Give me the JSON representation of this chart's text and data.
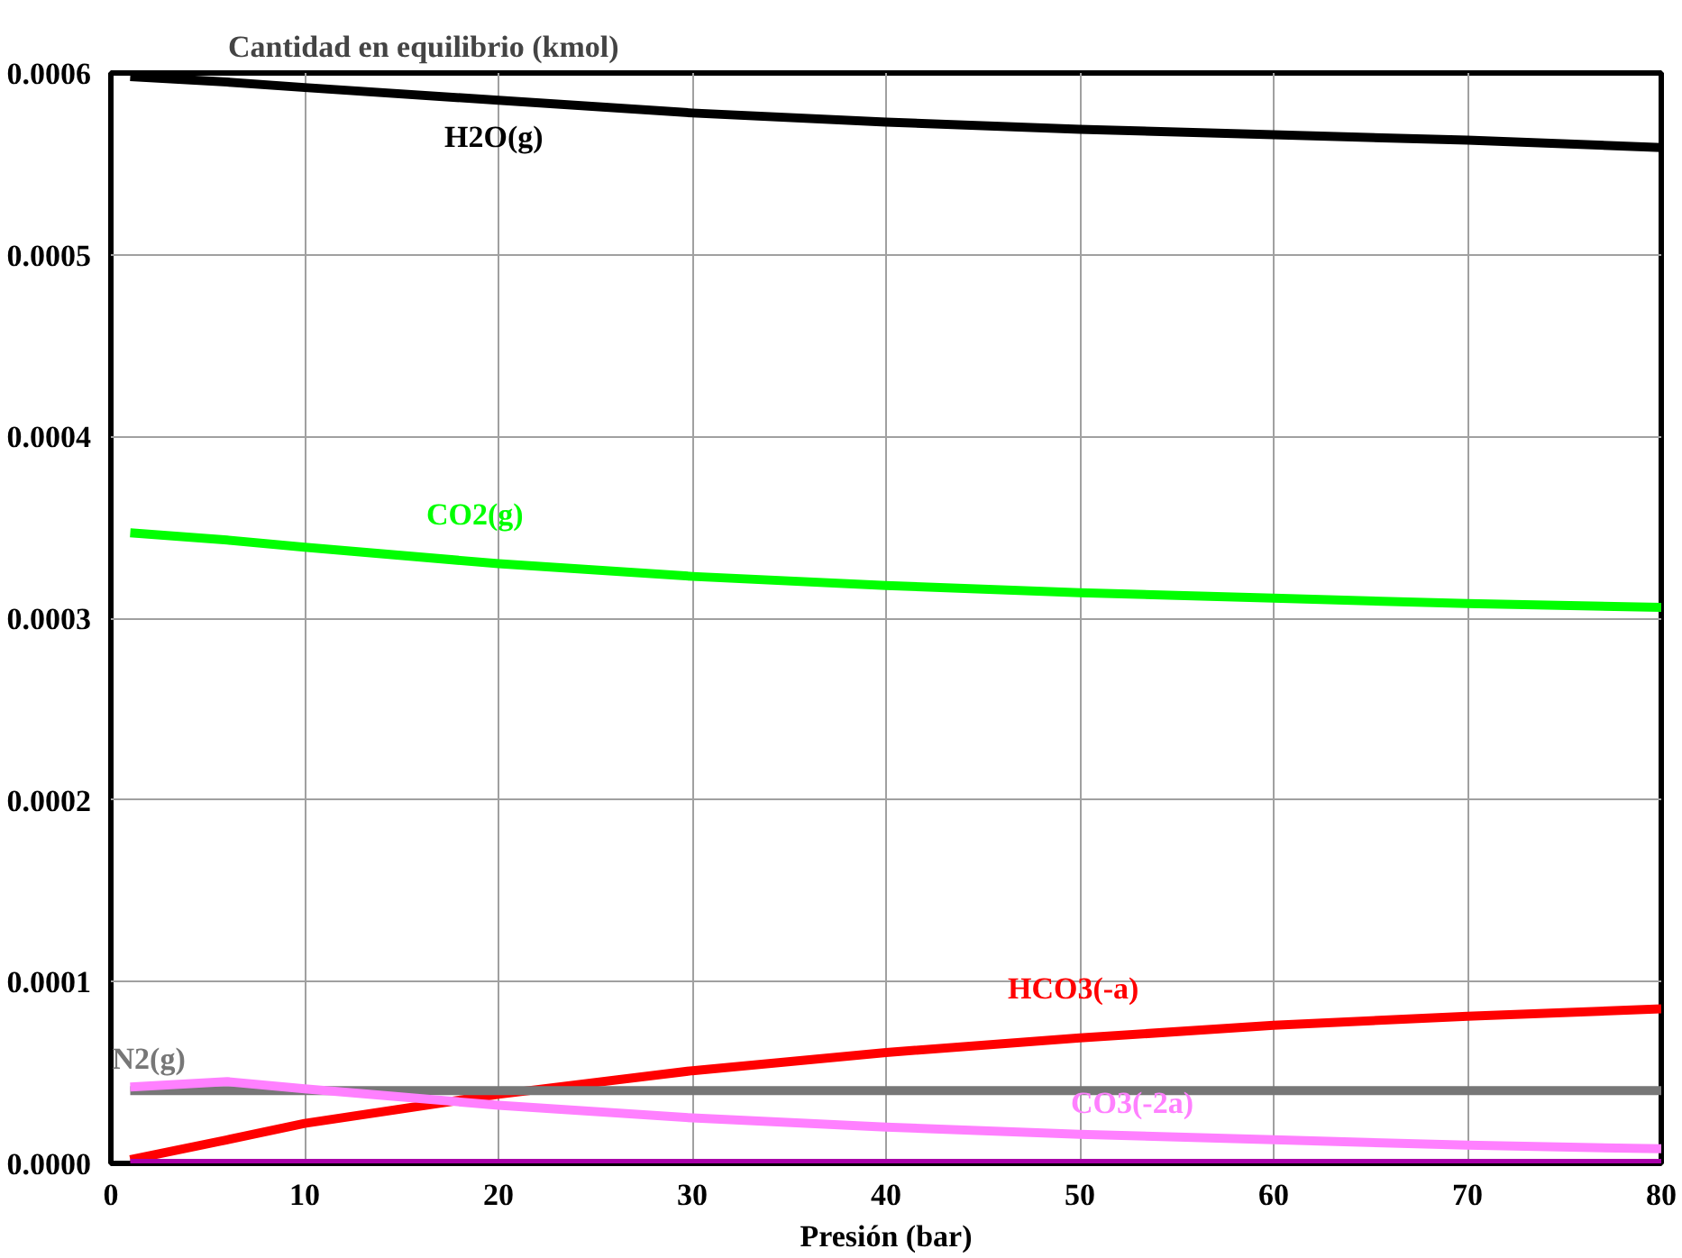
{
  "chart_data": {
    "type": "line",
    "ylabel": "Cantidad en equilibrio (kmol)",
    "xlabel": "Presión (bar)",
    "x": [
      1,
      6,
      10,
      20,
      30,
      40,
      50,
      60,
      70,
      80
    ],
    "series": [
      {
        "name": "H2O(g)",
        "color": "#000000",
        "values": [
          0.000598,
          0.000595,
          0.000592,
          0.000585,
          0.000578,
          0.000573,
          0.000569,
          0.000566,
          0.000563,
          0.000559
        ]
      },
      {
        "name": "CO2(g)",
        "color": "#00ff00",
        "values": [
          0.000347,
          0.000343,
          0.000339,
          0.00033,
          0.000323,
          0.000318,
          0.000314,
          0.000311,
          0.000308,
          0.000306
        ]
      },
      {
        "name": "HCO3(-a)",
        "color": "#ff0000",
        "values": [
          2e-06,
          1.3e-05,
          2.2e-05,
          3.8e-05,
          5.1e-05,
          6.1e-05,
          6.9e-05,
          7.6e-05,
          8.1e-05,
          8.5e-05
        ]
      },
      {
        "name": "N2(g)",
        "color": "#777777",
        "values": [
          4e-05,
          4e-05,
          4e-05,
          4e-05,
          4e-05,
          4e-05,
          4e-05,
          4e-05,
          4e-05,
          4e-05
        ]
      },
      {
        "name": "CO3(-2a)",
        "color": "#ff80ff",
        "values": [
          4.2e-05,
          4.5e-05,
          4.1e-05,
          3.2e-05,
          2.5e-05,
          2e-05,
          1.6e-05,
          1.3e-05,
          1e-05,
          8e-06
        ]
      },
      {
        "color": "#aa00aa",
        "values": [
          0,
          0,
          0,
          0,
          0,
          0,
          0,
          0,
          0,
          0
        ]
      }
    ],
    "xlim": [
      0,
      80
    ],
    "xticks": [
      0,
      10,
      20,
      30,
      40,
      50,
      60,
      70,
      80
    ],
    "ylim": [
      0,
      0.0006
    ],
    "yticks": [
      {
        "value": 0,
        "label": "0.0000"
      },
      {
        "value": 0.0001,
        "label": "0.0001"
      },
      {
        "value": 0.0002,
        "label": "0.0002"
      },
      {
        "value": 0.0003,
        "label": "0.0003"
      },
      {
        "value": 0.0004,
        "label": "0.0004"
      },
      {
        "value": 0.0005,
        "label": "0.0005"
      },
      {
        "value": 0.0006,
        "label": "0.0006"
      }
    ],
    "grid": true,
    "line_style": "solid",
    "marker": "none"
  }
}
